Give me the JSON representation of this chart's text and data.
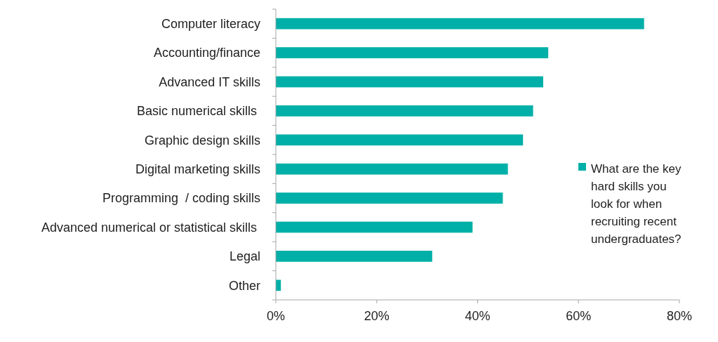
{
  "chart_data": {
    "type": "bar",
    "orientation": "horizontal",
    "categories": [
      "Computer literacy",
      "Accounting/finance",
      "Advanced IT skills",
      "Basic numerical skills ",
      "Graphic design skills",
      "Digital marketing skills",
      "Programming  / coding skills",
      "Advanced numerical or statistical skills ",
      "Legal",
      "Other"
    ],
    "series": [
      {
        "name": "What are the key hard skills you look for when recruiting recent undergraduates?",
        "color": "#00b0a8",
        "values": [
          73,
          54,
          53,
          51,
          49,
          46,
          45,
          39,
          31,
          1
        ]
      }
    ],
    "xlim": [
      0,
      80
    ],
    "xticks": [
      {
        "value": 0,
        "label": "0%"
      },
      {
        "value": 20,
        "label": "20%"
      },
      {
        "value": 40,
        "label": "40%"
      },
      {
        "value": 60,
        "label": "60%"
      },
      {
        "value": 80,
        "label": "80%"
      }
    ],
    "legend": "right"
  }
}
